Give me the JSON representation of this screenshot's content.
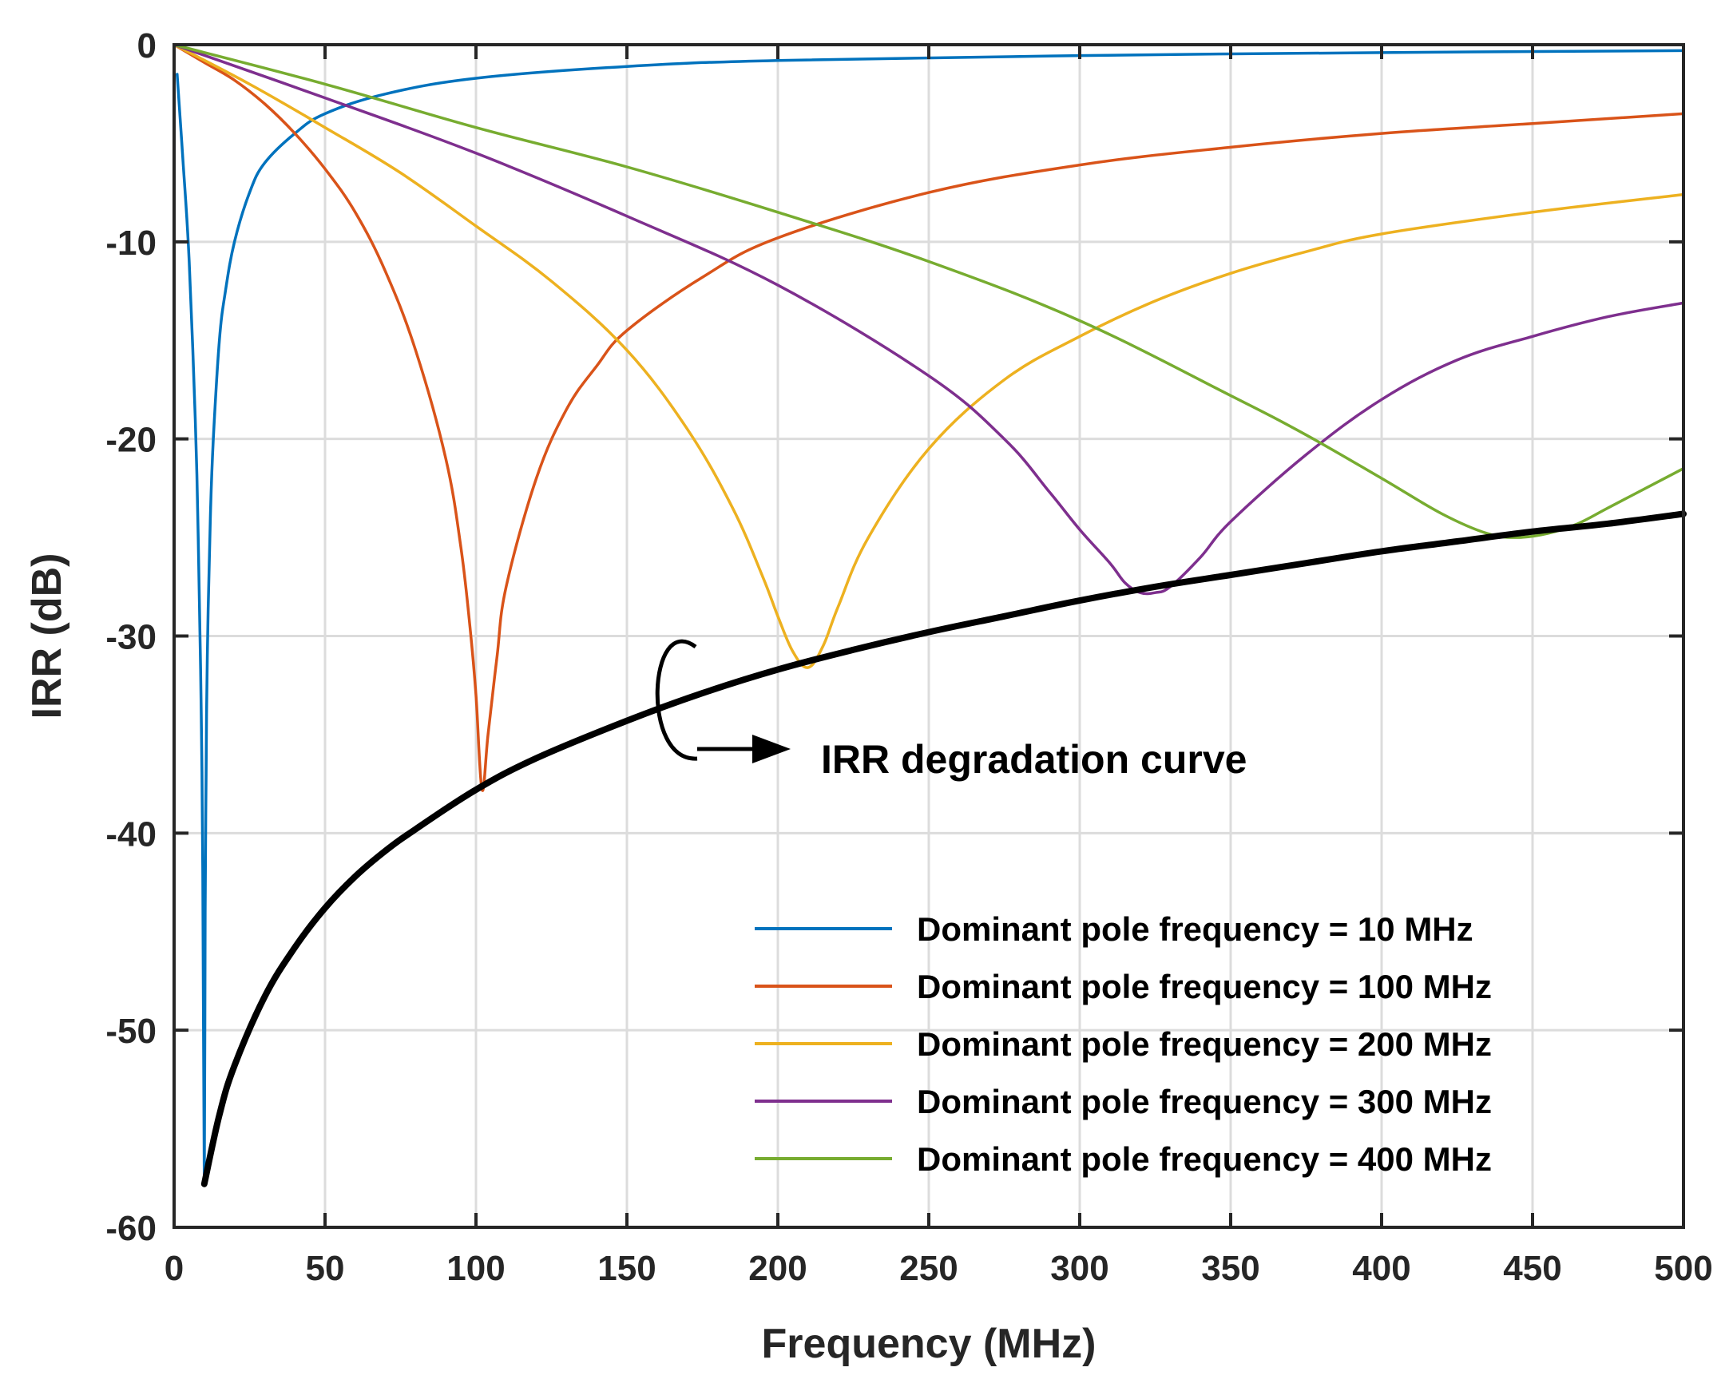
{
  "chart_data": {
    "type": "line",
    "title": "",
    "xlabel": "Frequency (MHz)",
    "ylabel": "IRR (dB)",
    "xlim": [
      0,
      500
    ],
    "ylim": [
      -60,
      0
    ],
    "xticks": [
      0,
      50,
      100,
      150,
      200,
      250,
      300,
      350,
      400,
      450,
      500
    ],
    "yticks": [
      0,
      -10,
      -20,
      -30,
      -40,
      -50,
      -60
    ],
    "grid": true,
    "legend_position": "bottom-right",
    "series": [
      {
        "name": "Dominant pole frequency = 10 MHz",
        "color": "#0072BD",
        "x": [
          1,
          3,
          5,
          7,
          8,
          9,
          9.5,
          10,
          10.3,
          10.6,
          11,
          12,
          13,
          15,
          17,
          20,
          25,
          30,
          40,
          50,
          70,
          100,
          150,
          200,
          300,
          400,
          500
        ],
        "y": [
          -1.5,
          -6,
          -11,
          -19,
          -25,
          -34,
          -42,
          -57.8,
          -44,
          -37,
          -31,
          -24,
          -20,
          -15,
          -12.5,
          -10,
          -7.5,
          -6,
          -4.5,
          -3.5,
          -2.5,
          -1.7,
          -1.1,
          -0.8,
          -0.55,
          -0.4,
          -0.3
        ]
      },
      {
        "name": "Dominant pole frequency = 100 MHz",
        "color": "#D95319",
        "x": [
          0,
          10,
          20,
          30,
          40,
          50,
          60,
          70,
          80,
          90,
          95,
          98,
          100,
          102,
          104,
          107,
          110,
          120,
          130,
          140,
          150,
          175,
          200,
          250,
          300,
          350,
          400,
          450,
          500
        ],
        "y": [
          0,
          -0.9,
          -1.8,
          -3,
          -4.5,
          -6.3,
          -8.5,
          -11.5,
          -15.5,
          -21,
          -25.5,
          -29.5,
          -33,
          -37.8,
          -35,
          -31,
          -27.5,
          -22,
          -18.5,
          -16.3,
          -14.5,
          -11.8,
          -9.8,
          -7.5,
          -6.1,
          -5.2,
          -4.5,
          -4,
          -3.5
        ]
      },
      {
        "name": "Dominant pole frequency = 200 MHz",
        "color": "#EDB120",
        "x": [
          0,
          25,
          50,
          75,
          100,
          125,
          150,
          170,
          185,
          195,
          200,
          205,
          210,
          215,
          220,
          230,
          250,
          275,
          300,
          325,
          350,
          375,
          400,
          450,
          500
        ],
        "y": [
          0,
          -2,
          -4.2,
          -6.5,
          -9.2,
          -12,
          -15.5,
          -19.5,
          -23.5,
          -27,
          -29,
          -30.8,
          -31.6,
          -30.5,
          -28.5,
          -25,
          -20.5,
          -17,
          -14.8,
          -13,
          -11.6,
          -10.5,
          -9.6,
          -8.5,
          -7.6
        ]
      },
      {
        "name": "Dominant pole frequency = 300 MHz",
        "color": "#7E2F8E",
        "x": [
          0,
          50,
          100,
          150,
          200,
          250,
          275,
          290,
          300,
          310,
          315,
          320,
          325,
          330,
          340,
          350,
          375,
          400,
          425,
          450,
          475,
          500
        ],
        "y": [
          0,
          -2.7,
          -5.5,
          -8.7,
          -12.2,
          -16.8,
          -20,
          -22.7,
          -24.6,
          -26.3,
          -27.3,
          -27.8,
          -27.8,
          -27.5,
          -26,
          -24.2,
          -20.8,
          -18,
          -16,
          -14.8,
          -13.8,
          -13.1
        ]
      },
      {
        "name": "Dominant pole frequency = 400 MHz",
        "color": "#77AC30",
        "x": [
          0,
          50,
          100,
          150,
          200,
          250,
          300,
          350,
          375,
          400,
          420,
          435,
          445,
          455,
          465,
          475,
          490,
          500
        ],
        "y": [
          0,
          -2,
          -4.2,
          -6.2,
          -8.5,
          -11,
          -14,
          -17.8,
          -19.8,
          -22,
          -23.8,
          -24.8,
          -25,
          -24.8,
          -24.3,
          -23.5,
          -22.3,
          -21.5
        ]
      },
      {
        "name": "IRR degradation curve",
        "color": "#000000",
        "x": [
          10,
          15,
          20,
          30,
          40,
          50,
          60,
          70,
          80,
          100,
          120,
          150,
          175,
          200,
          225,
          250,
          275,
          300,
          325,
          350,
          375,
          400,
          425,
          450,
          475,
          500
        ],
        "y": [
          -57.8,
          -54.3,
          -51.8,
          -48.3,
          -45.8,
          -43.8,
          -42.2,
          -40.9,
          -39.8,
          -37.8,
          -36.2,
          -34.3,
          -32.9,
          -31.7,
          -30.7,
          -29.8,
          -29,
          -28.2,
          -27.5,
          -26.9,
          -26.3,
          -25.7,
          -25.2,
          -24.7,
          -24.3,
          -23.8
        ]
      }
    ],
    "annotation": {
      "text": "IRR degradation curve",
      "target_series": "IRR degradation curve"
    }
  }
}
